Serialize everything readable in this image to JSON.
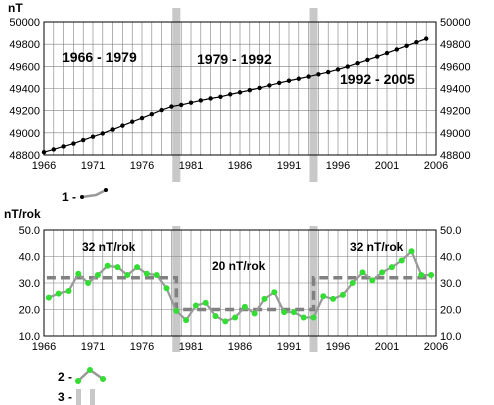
{
  "colors": {
    "grid": "#7f7f7f",
    "axis": "#000000",
    "series_points": "#000000",
    "rate_points": "#33dd33",
    "rate_line": "#999999",
    "mean_line": "#808080",
    "band": "#c8c8c8"
  },
  "chart_data": [
    {
      "type": "line",
      "ylabel": "nT",
      "xlim": [
        1966,
        2006
      ],
      "ylim": [
        48800,
        50000
      ],
      "xticks": [
        1966,
        1971,
        1976,
        1981,
        1986,
        1991,
        1996,
        2001,
        2006
      ],
      "yticks_left": [
        "50000",
        "49800",
        "49600",
        "49400",
        "49200",
        "49000",
        "48800"
      ],
      "yticks_right": [
        "50000",
        "49800",
        "49600",
        "49400",
        "49200",
        "49000",
        "48800"
      ],
      "grid": true,
      "legend_position": "below-left",
      "period_labels": [
        "1966  -  1979",
        "1979  -  1992",
        "1992  -  2005"
      ],
      "highlight_bands_years": [
        1979.5,
        1993.5
      ],
      "series": [
        {
          "x": [
            1966,
            1967,
            1968,
            1969,
            1970,
            1971,
            1972,
            1973,
            1974,
            1975,
            1976,
            1977,
            1978,
            1979,
            1980,
            1981,
            1982,
            1983,
            1984,
            1985,
            1986,
            1987,
            1988,
            1989,
            1990,
            1991,
            1992,
            1993,
            1994,
            1995,
            1996,
            1997,
            1998,
            1999,
            2000,
            2001,
            2002,
            2003,
            2004,
            2005
          ],
          "values": [
            48825,
            48850,
            48877,
            48903,
            48935,
            48965,
            48995,
            49030,
            49065,
            49100,
            49133,
            49168,
            49205,
            49237,
            49252,
            49272,
            49292,
            49310,
            49325,
            49347,
            49365,
            49385,
            49405,
            49428,
            49450,
            49470,
            49488,
            49508,
            49528,
            49548,
            49572,
            49598,
            49628,
            49658,
            49688,
            49720,
            49752,
            49785,
            49818,
            49850
          ]
        }
      ]
    },
    {
      "type": "line",
      "ylabel": "nT/rok",
      "xlim": [
        1966,
        2006
      ],
      "ylim": [
        10,
        50
      ],
      "xticks": [
        1966,
        1971,
        1976,
        1981,
        1986,
        1991,
        1996,
        2001,
        2006
      ],
      "yticks_left": [
        "50.0",
        "40.0",
        "30.0",
        "20.0",
        "10.0"
      ],
      "yticks_right": [
        "50.0",
        "40.0",
        "30.0",
        "20.0",
        "10.0"
      ],
      "grid": true,
      "legend_position": "below-left",
      "rate_labels": [
        "32 nT/rok",
        "20 nT/rok",
        "32 nT/rok"
      ],
      "highlight_bands_years": [
        1979.5,
        1993.5
      ],
      "means": [
        {
          "x_start": 1966.3,
          "x_end": 1979.5,
          "value": 32
        },
        {
          "x_start": 1979.5,
          "x_end": 1993.5,
          "value": 20
        },
        {
          "x_start": 1993.5,
          "x_end": 2005.6,
          "value": 32
        }
      ],
      "series": [
        {
          "x": [
            1966.5,
            1967.5,
            1968.5,
            1969.5,
            1970.5,
            1971.5,
            1972.5,
            1973.5,
            1974.5,
            1975.5,
            1976.5,
            1977.5,
            1978.5,
            1979.5,
            1980.5,
            1981.5,
            1982.5,
            1983.5,
            1984.5,
            1985.5,
            1986.5,
            1987.5,
            1988.5,
            1989.5,
            1990.5,
            1991.5,
            1992.5,
            1993.5,
            1994.5,
            1995.5,
            1996.5,
            1997.5,
            1998.5,
            1999.5,
            2000.5,
            2001.5,
            2002.5,
            2003.5,
            2004.5,
            2005.5
          ],
          "values": [
            24.5,
            26,
            27,
            33.5,
            30,
            33,
            36.5,
            36,
            33,
            36,
            33.5,
            33,
            28,
            19.5,
            16,
            21.5,
            22.5,
            17.5,
            15.5,
            17,
            21,
            18.5,
            24,
            26.5,
            19,
            19,
            17,
            17,
            25,
            24,
            25.5,
            30,
            34,
            31,
            34,
            36,
            38.5,
            42,
            33,
            33
          ]
        }
      ]
    }
  ],
  "legend": [
    {
      "number": "1 -"
    },
    {
      "number": "2 -"
    },
    {
      "number": "3 -"
    }
  ]
}
